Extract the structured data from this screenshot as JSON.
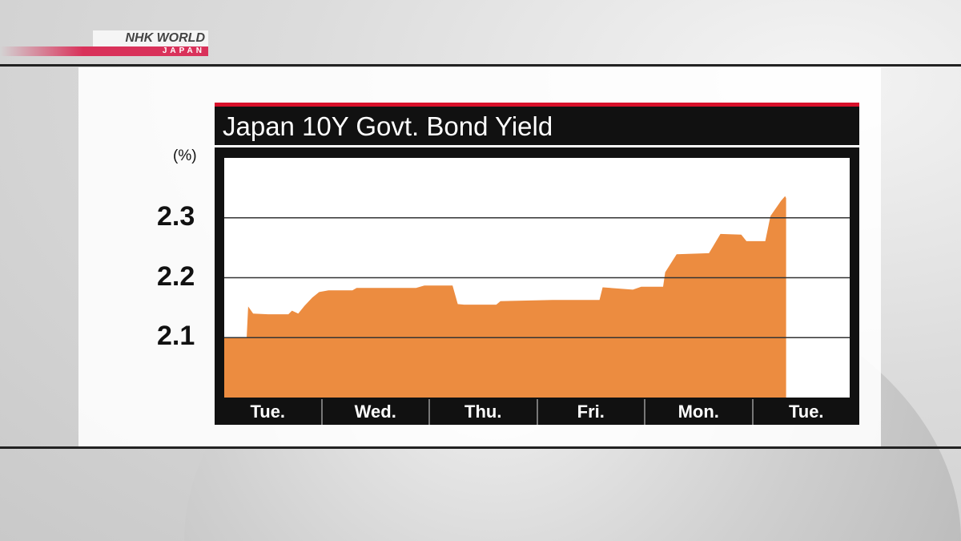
{
  "brand": {
    "line1": "NHK WORLD",
    "line2": "JAPAN"
  },
  "chart_data": {
    "type": "area",
    "title": "Japan 10Y Govt. Bond Yield",
    "ylabel": "(%)",
    "ylim": [
      2.0,
      2.4
    ],
    "yticks": [
      "2.1",
      "2.2",
      "2.3"
    ],
    "ytick_values": [
      2.1,
      2.2,
      2.3
    ],
    "categories": [
      "Tue.",
      "Wed.",
      "Thu.",
      "Fri.",
      "Mon.",
      "Tue."
    ],
    "xlim": [
      0,
      6
    ],
    "grid": true,
    "color": "#ec8c40",
    "points": [
      [
        0,
        2.1
      ],
      [
        0.215,
        2.1
      ],
      [
        0.23,
        2.152
      ],
      [
        0.277,
        2.14
      ],
      [
        0.42,
        2.139
      ],
      [
        0.615,
        2.139
      ],
      [
        0.65,
        2.145
      ],
      [
        0.71,
        2.14
      ],
      [
        0.77,
        2.153
      ],
      [
        0.845,
        2.167
      ],
      [
        0.91,
        2.176
      ],
      [
        1.0,
        2.179
      ],
      [
        1.23,
        2.179
      ],
      [
        1.27,
        2.183
      ],
      [
        1.84,
        2.183
      ],
      [
        1.92,
        2.187
      ],
      [
        2.19,
        2.187
      ],
      [
        2.24,
        2.156
      ],
      [
        2.3,
        2.155
      ],
      [
        2.61,
        2.155
      ],
      [
        2.65,
        2.161
      ],
      [
        3.15,
        2.163
      ],
      [
        3.6,
        2.163
      ],
      [
        3.63,
        2.184
      ],
      [
        3.92,
        2.18
      ],
      [
        4.0,
        2.185
      ],
      [
        4.21,
        2.185
      ],
      [
        4.23,
        2.209
      ],
      [
        4.34,
        2.239
      ],
      [
        4.65,
        2.241
      ],
      [
        4.76,
        2.273
      ],
      [
        4.96,
        2.272
      ],
      [
        5.01,
        2.261
      ],
      [
        5.19,
        2.261
      ],
      [
        5.24,
        2.303
      ],
      [
        5.34,
        2.328
      ],
      [
        5.38,
        2.336
      ],
      [
        5.39,
        2.333
      ]
    ]
  }
}
